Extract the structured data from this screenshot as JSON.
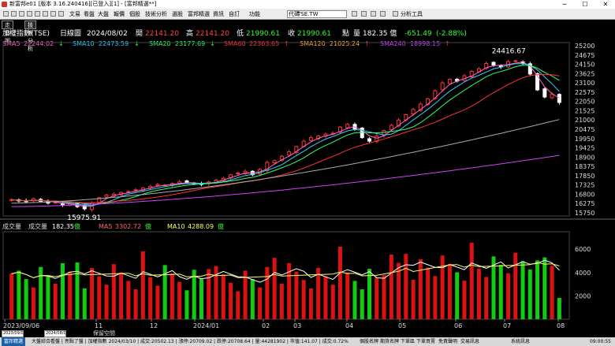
{
  "window": {
    "title": "新富邦e01 [版本 3.16.240416][已登入][1] - [富邦精選**]",
    "controls": [
      "─",
      "☐",
      "✕"
    ]
  },
  "menubar": {
    "items": [
      "文易",
      "看盤",
      "大盤",
      "報價",
      "個股",
      "技術分析",
      "選股",
      "富邦精選",
      "資訊",
      "自訂",
      "功能"
    ],
    "symbol_label": "代碼",
    "symbol_value": "TSE.TW",
    "tools": "分析工具"
  },
  "tabs": [
    "走勢圖",
    "技術分析"
  ],
  "quote": {
    "name": "加權指數(TSE)",
    "period": "日線圖",
    "date": "2024/08/02",
    "open_label": "開",
    "open": "22141.20",
    "high_label": "高",
    "high": "22141.20",
    "low_label": "低",
    "low": "21990.61",
    "close_label": "收",
    "close": "21990.61",
    "close_unit": "點",
    "vol_label": "量",
    "volume": "182.35 億",
    "change": "-651.49",
    "change_pct": "(-2.88%)"
  },
  "ma_legend": [
    {
      "label": "SMA5",
      "value": "22244.02",
      "arrow": "↓",
      "color": "#ff66cc"
    },
    {
      "label": "SMA10",
      "value": "22473.59",
      "arrow": "↓",
      "color": "#33ccff"
    },
    {
      "label": "SMA20",
      "value": "23177.69",
      "arrow": "↓",
      "color": "#33ff66"
    },
    {
      "label": "SMA60",
      "value": "22363.65",
      "arrow": "↑",
      "color": "#ff3333"
    },
    {
      "label": "SMA120",
      "value": "21025.24",
      "arrow": "↑",
      "color": "#ffaa33"
    },
    {
      "label": "SMA240",
      "value": "18998.15",
      "arrow": "↑",
      "color": "#cc44ff"
    }
  ],
  "price_axis": [
    "25200",
    "24675",
    "24150",
    "23625",
    "23100",
    "22575",
    "22050",
    "21525",
    "21000",
    "20475",
    "19950",
    "19425",
    "18900",
    "18375",
    "17850",
    "17325",
    "16800",
    "16275",
    "15750"
  ],
  "annotations": {
    "high": "24416.67",
    "low": "15975.91"
  },
  "volume_legend": {
    "title": "成交量",
    "vol_label": "成交量",
    "vol_value": "182.35",
    "vol_unit": "億",
    "ma5_label": "MA5",
    "ma5_value": "3302.72",
    "ma5_unit": "億",
    "ma10_label": "MA10",
    "ma10_value": "4288.09",
    "ma10_unit": "億"
  },
  "volume_axis": [
    "6000",
    "4000",
    "2000"
  ],
  "time_axis": [
    "2023/09/06",
    "11",
    "12",
    "2024/01",
    "02",
    "03",
    "04",
    "05",
    "06",
    "07",
    "08"
  ],
  "footer": {
    "from": "2023/09/06",
    "to": "2024/08/02",
    "label": "保留空間"
  },
  "status": {
    "left": "富邦精選",
    "center": "大盤綜合看盤 | 亮點了盤 | 加權指數 2024/03/10 | 成交:20502.13 | 漲停:20709.02 | 跌停:20708.64 | 量:44281902 | 市值:141.07 | 成交:0.72%",
    "right": [
      "個股名牌",
      "期貨名牌",
      "下單區",
      "下單買賣",
      "免責聲明",
      "交易訊息",
      "系統訊息"
    ],
    "time": "09:00:55"
  },
  "chart_data": {
    "type": "candlestick",
    "title": "加權指數(TSE) 日線圖",
    "x_range": [
      "2023/09/06",
      "2024/08/02"
    ],
    "y_range": [
      15750,
      25200
    ],
    "volume_range": [
      0,
      7500
    ],
    "high": 24416.67,
    "low": 15975.91,
    "closes": [
      16500,
      16420,
      16380,
      16550,
      16400,
      16300,
      16350,
      16200,
      16250,
      16100,
      15976,
      16300,
      16600,
      16750,
      16800,
      16900,
      16950,
      17050,
      17150,
      17250,
      17350,
      17320,
      17400,
      17500,
      17450,
      17400,
      17350,
      17500,
      17600,
      17700,
      17900,
      18000,
      18100,
      17900,
      18200,
      18600,
      18700,
      18950,
      19200,
      19500,
      19800,
      20000,
      20100,
      20200,
      20250,
      20600,
      20750,
      20500,
      20000,
      19800,
      20100,
      20400,
      20700,
      21000,
      21300,
      21600,
      21900,
      22200,
      22650,
      23100,
      23300,
      23200,
      23500,
      23750,
      23900,
      24200,
      24100,
      24000,
      24300,
      24350,
      24200,
      23600,
      22700,
      22300,
      22450,
      21990
    ],
    "volume_ma5": 3302.72,
    "volume_ma10": 4288.09
  }
}
